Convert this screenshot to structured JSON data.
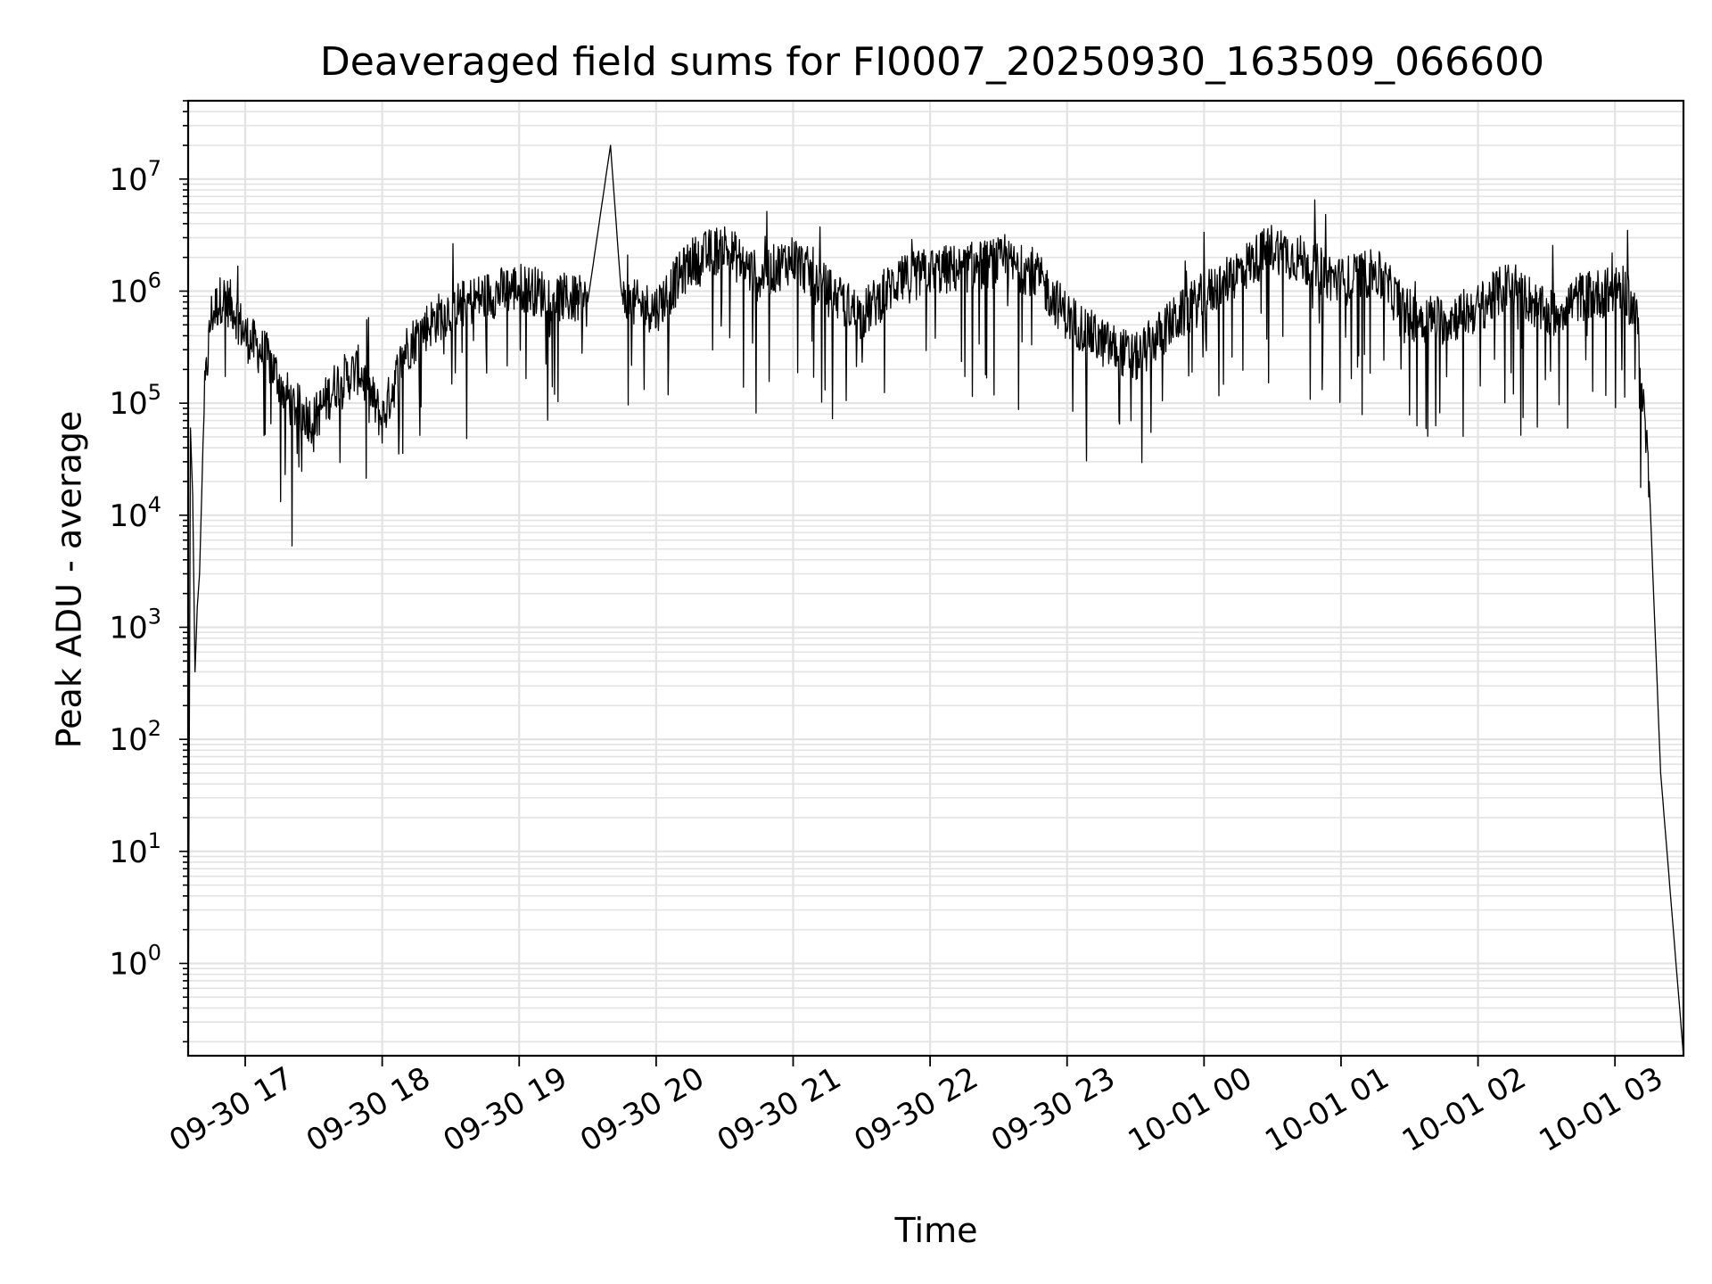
{
  "chart_data": {
    "type": "line",
    "title": "Deaveraged field sums for FI0007_20250930_163509_066600",
    "xlabel": "Time",
    "ylabel": "Peak ADU - average",
    "yscale": "log",
    "grid": true,
    "line_color": "#000000",
    "grid_color": "#e3e3e3",
    "x_range": [
      "2025-09-30 16:35",
      "2025-10-01 03:30"
    ],
    "ylim": [
      0.15,
      50000000
    ],
    "x_ticks": [
      {
        "time": "2025-09-30 17:00",
        "label": "09-30 17"
      },
      {
        "time": "2025-09-30 18:00",
        "label": "09-30 18"
      },
      {
        "time": "2025-09-30 19:00",
        "label": "09-30 19"
      },
      {
        "time": "2025-09-30 20:00",
        "label": "09-30 20"
      },
      {
        "time": "2025-09-30 21:00",
        "label": "09-30 21"
      },
      {
        "time": "2025-09-30 22:00",
        "label": "09-30 22"
      },
      {
        "time": "2025-09-30 23:00",
        "label": "09-30 23"
      },
      {
        "time": "2025-10-01 00:00",
        "label": "10-01 00"
      },
      {
        "time": "2025-10-01 01:00",
        "label": "10-01 01"
      },
      {
        "time": "2025-10-01 02:00",
        "label": "10-01 02"
      },
      {
        "time": "2025-10-01 03:00",
        "label": "10-01 03"
      }
    ],
    "y_ticks": [
      {
        "exp": 0,
        "base": "10",
        "sup": "0"
      },
      {
        "exp": 1,
        "base": "10",
        "sup": "1"
      },
      {
        "exp": 2,
        "base": "10",
        "sup": "2"
      },
      {
        "exp": 3,
        "base": "10",
        "sup": "3"
      },
      {
        "exp": 4,
        "base": "10",
        "sup": "4"
      },
      {
        "exp": 5,
        "base": "10",
        "sup": "5"
      },
      {
        "exp": 6,
        "base": "10",
        "sup": "6"
      },
      {
        "exp": 7,
        "base": "10",
        "sup": "7"
      }
    ],
    "series": [
      {
        "points": [
          [
            "2025-09-30 16:35",
            0.15
          ],
          [
            "2025-09-30 16:36",
            60000
          ],
          [
            "2025-09-30 16:37",
            15000
          ],
          [
            "2025-09-30 16:38",
            400
          ],
          [
            "2025-09-30 16:39",
            1500
          ],
          [
            "2025-09-30 16:40",
            3000
          ],
          [
            "2025-09-30 16:42",
            100000
          ],
          [
            "2025-09-30 16:45",
            600000
          ],
          [
            "2025-09-30 16:50",
            900000
          ],
          [
            "2025-09-30 16:55",
            700000
          ],
          [
            "2025-09-30 17:00",
            400000
          ],
          [
            "2025-09-30 17:10",
            250000
          ],
          [
            "2025-09-30 17:20",
            100000
          ],
          [
            "2025-09-30 17:30",
            70000
          ],
          [
            "2025-09-30 17:40",
            150000
          ],
          [
            "2025-09-30 17:50",
            200000
          ],
          [
            "2025-09-30 18:00",
            70000
          ],
          [
            "2025-09-30 18:10",
            300000
          ],
          [
            "2025-09-30 18:20",
            500000
          ],
          [
            "2025-09-30 18:30",
            700000
          ],
          [
            "2025-09-30 18:45",
            900000
          ],
          [
            "2025-09-30 19:00",
            1100000
          ],
          [
            "2025-09-30 19:15",
            900000
          ],
          [
            "2025-09-30 19:30",
            800000
          ],
          [
            "2025-09-30 19:40",
            20000000
          ],
          [
            "2025-09-30 19:45",
            800000
          ],
          [
            "2025-09-30 20:00",
            700000
          ],
          [
            "2025-09-30 20:15",
            1800000
          ],
          [
            "2025-09-30 20:30",
            2500000
          ],
          [
            "2025-09-30 20:45",
            1300000
          ],
          [
            "2025-09-30 21:00",
            2000000
          ],
          [
            "2025-09-30 21:15",
            1000000
          ],
          [
            "2025-09-30 21:30",
            600000
          ],
          [
            "2025-09-30 21:45",
            1200000
          ],
          [
            "2025-09-30 22:00",
            1500000
          ],
          [
            "2025-09-30 22:15",
            1600000
          ],
          [
            "2025-09-30 22:30",
            1800000
          ],
          [
            "2025-09-30 22:45",
            1500000
          ],
          [
            "2025-09-30 23:00",
            600000
          ],
          [
            "2025-09-30 23:15",
            350000
          ],
          [
            "2025-09-30 23:30",
            250000
          ],
          [
            "2025-09-30 23:45",
            500000
          ],
          [
            "2025-10-01 00:00",
            900000
          ],
          [
            "2025-10-01 00:15",
            1500000
          ],
          [
            "2025-10-01 00:30",
            2500000
          ],
          [
            "2025-10-01 00:45",
            1800000
          ],
          [
            "2025-10-01 01:00",
            1200000
          ],
          [
            "2025-10-01 01:15",
            1500000
          ],
          [
            "2025-10-01 01:30",
            600000
          ],
          [
            "2025-10-01 01:45",
            550000
          ],
          [
            "2025-10-01 02:00",
            700000
          ],
          [
            "2025-10-01 02:15",
            1200000
          ],
          [
            "2025-10-01 02:30",
            600000
          ],
          [
            "2025-10-01 02:45",
            900000
          ],
          [
            "2025-10-01 03:00",
            1000000
          ],
          [
            "2025-10-01 03:05",
            1000000
          ],
          [
            "2025-10-01 03:10",
            500000
          ],
          [
            "2025-10-01 03:15",
            20000
          ],
          [
            "2025-10-01 03:20",
            50
          ],
          [
            "2025-10-01 03:30",
            0.15
          ]
        ]
      }
    ]
  }
}
